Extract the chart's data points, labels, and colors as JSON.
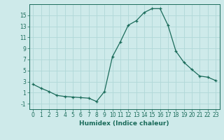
{
  "x": [
    0,
    1,
    2,
    3,
    4,
    5,
    6,
    7,
    8,
    9,
    10,
    11,
    12,
    13,
    14,
    15,
    16,
    17,
    18,
    19,
    20,
    21,
    22,
    23
  ],
  "y": [
    2.5,
    1.8,
    1.2,
    0.5,
    0.3,
    0.2,
    0.1,
    0.0,
    -0.6,
    1.2,
    7.5,
    10.2,
    13.2,
    14.0,
    15.5,
    16.2,
    16.2,
    13.2,
    8.5,
    6.5,
    5.2,
    4.0,
    3.8,
    3.2
  ],
  "xlabel": "Humidex (Indice chaleur)",
  "xlim": [
    -0.5,
    23.5
  ],
  "ylim": [
    -2,
    17
  ],
  "yticks": [
    -1,
    1,
    3,
    5,
    7,
    9,
    11,
    13,
    15
  ],
  "xticks": [
    0,
    1,
    2,
    3,
    4,
    5,
    6,
    7,
    8,
    9,
    10,
    11,
    12,
    13,
    14,
    15,
    16,
    17,
    18,
    19,
    20,
    21,
    22,
    23
  ],
  "line_color": "#1a6b5a",
  "marker": "+",
  "bg_color": "#ceeaea",
  "grid_color": "#b0d8d8",
  "tick_color": "#1a6b5a",
  "xlabel_fontsize": 6.5,
  "tick_fontsize": 5.5
}
